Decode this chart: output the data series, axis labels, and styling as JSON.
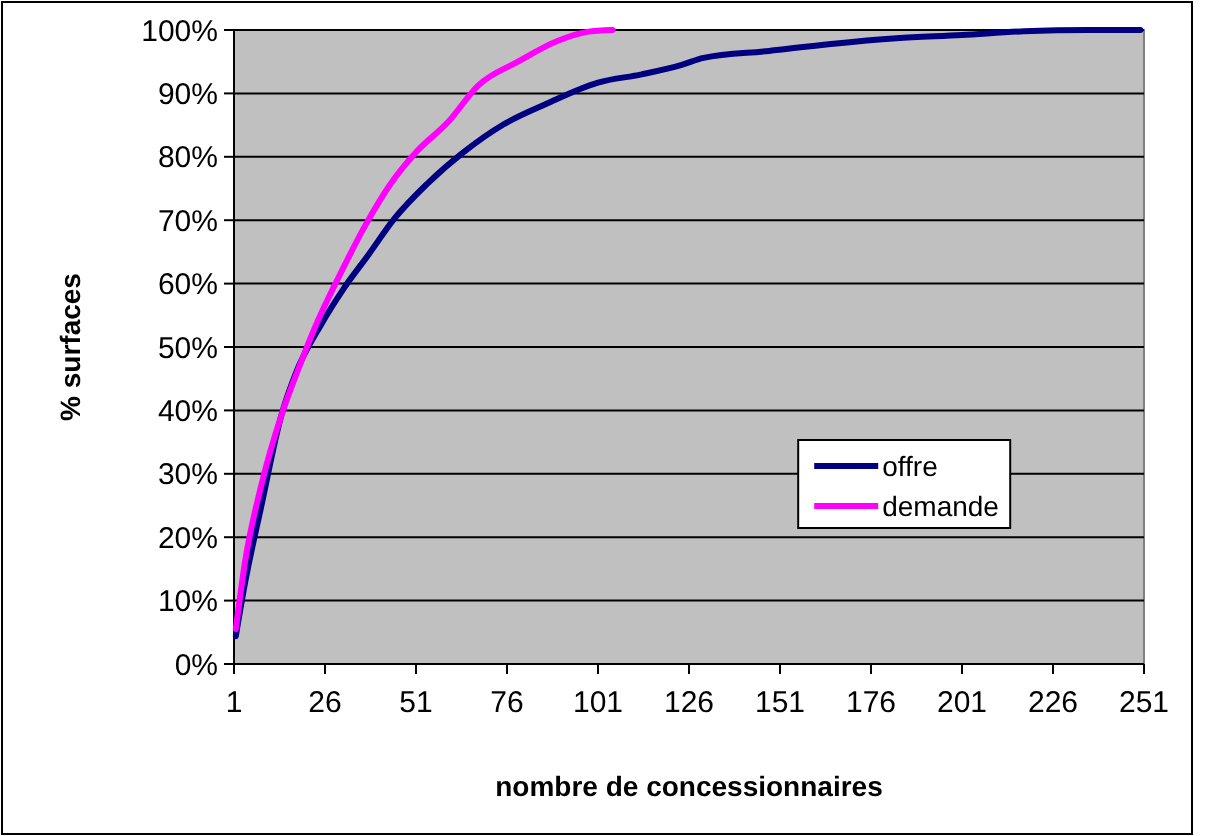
{
  "chart_data": {
    "type": "line",
    "xlabel": "nombre de concessionnaires",
    "ylabel": "% surfaces",
    "xlim": [
      1,
      251
    ],
    "xticks": [
      1,
      26,
      51,
      76,
      101,
      126,
      151,
      176,
      201,
      226,
      251
    ],
    "ylim": [
      0,
      100
    ],
    "yticks": [
      {
        "value": 0,
        "label": "0%"
      },
      {
        "value": 10,
        "label": "10%"
      },
      {
        "value": 20,
        "label": "20%"
      },
      {
        "value": 30,
        "label": "30%"
      },
      {
        "value": 40,
        "label": "40%"
      },
      {
        "value": 50,
        "label": "50%"
      },
      {
        "value": 60,
        "label": "60%"
      },
      {
        "value": 70,
        "label": "70%"
      },
      {
        "value": 80,
        "label": "80%"
      },
      {
        "value": 90,
        "label": "90%"
      },
      {
        "value": 100,
        "label": "100%"
      }
    ],
    "grid": "y",
    "legend": "bottom right",
    "line_style": "solid",
    "series": [
      {
        "name": "offre",
        "color": "#000080",
        "x": [
          1.5,
          4,
          8.5,
          14,
          18,
          25,
          31,
          38,
          45,
          54,
          64,
          75,
          87,
          101,
          113,
          124,
          130,
          148,
          165,
          183,
          201,
          218,
          236,
          250
        ],
        "values": [
          4.4,
          12.7,
          24.9,
          39.2,
          45.9,
          53.6,
          59.1,
          64.6,
          70.2,
          75.7,
          80.7,
          85.1,
          88.4,
          91.7,
          93,
          94.5,
          95.6,
          96.7,
          97.8,
          98.7,
          99.2,
          99.8,
          100,
          100
        ]
      },
      {
        "name": "demande",
        "color": "#ff00ff",
        "x": [
          1.5,
          4,
          8.5,
          14,
          19,
          24,
          30,
          37,
          44,
          51,
          60,
          68,
          79,
          90,
          98,
          105
        ],
        "values": [
          5.5,
          16,
          28.2,
          39.2,
          47,
          54.1,
          61.3,
          69.1,
          75.7,
          80.7,
          85.6,
          91.2,
          95,
          98.3,
          99.7,
          100
        ]
      }
    ]
  }
}
